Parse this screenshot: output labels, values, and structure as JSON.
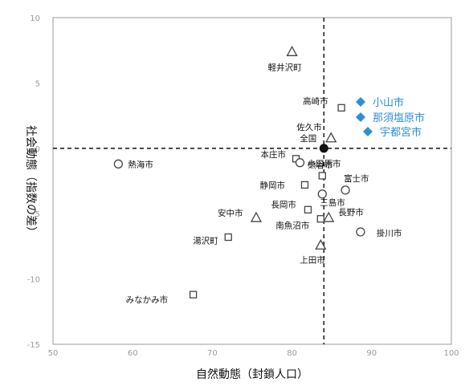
{
  "chart_data": {
    "type": "scatter",
    "xlabel": "自然動態（封鎖人口）",
    "ylabel": "社会動態（指数の差）",
    "xlim": [
      50,
      100
    ],
    "ylim": [
      -15,
      10
    ],
    "xticks": [
      "50",
      "60",
      "70",
      "80",
      "90",
      "100"
    ],
    "yticks": [
      "10",
      "5",
      "0",
      "-5",
      "-10",
      "-15"
    ],
    "reference_lines": {
      "x": 84,
      "y": 0,
      "style": "dashed"
    },
    "legend_position": "right",
    "highlight_color": "#2e8fd2",
    "points": [
      {
        "name": "軽井沢町",
        "x": 80.0,
        "y": 7.4,
        "marker": "triangle"
      },
      {
        "name": "高崎市",
        "x": 86.2,
        "y": 3.1,
        "marker": "square"
      },
      {
        "name": "佐久市",
        "x": 84.9,
        "y": 0.8,
        "marker": "triangle"
      },
      {
        "name": "全国",
        "x": 84.0,
        "y": 0.0,
        "marker": "dot"
      },
      {
        "name": "熱海市",
        "x": 58.2,
        "y": -1.2,
        "marker": "circle"
      },
      {
        "name": "本庄市",
        "x": 80.5,
        "y": -0.8,
        "marker": "square"
      },
      {
        "name": "小田原市",
        "x": 81.0,
        "y": -1.1,
        "marker": "circle"
      },
      {
        "name": "熊谷市",
        "x": 83.8,
        "y": -2.1,
        "marker": "square"
      },
      {
        "name": "静岡市",
        "x": 81.6,
        "y": -2.8,
        "marker": "square"
      },
      {
        "name": "富士市",
        "x": 86.7,
        "y": -3.2,
        "marker": "circle"
      },
      {
        "name": "三島市",
        "x": 83.8,
        "y": -3.5,
        "marker": "circle"
      },
      {
        "name": "長岡市",
        "x": 82.0,
        "y": -4.7,
        "marker": "square"
      },
      {
        "name": "長野市",
        "x": 84.6,
        "y": -5.3,
        "marker": "triangle"
      },
      {
        "name": "安中市",
        "x": 75.5,
        "y": -5.3,
        "marker": "triangle"
      },
      {
        "name": "南魚沼市",
        "x": 83.6,
        "y": -5.4,
        "marker": "square"
      },
      {
        "name": "掛川市",
        "x": 88.6,
        "y": -6.4,
        "marker": "circle"
      },
      {
        "name": "湯沢町",
        "x": 72.0,
        "y": -6.8,
        "marker": "square"
      },
      {
        "name": "上田市",
        "x": 83.6,
        "y": -7.4,
        "marker": "triangle"
      },
      {
        "name": "みなかみ市",
        "x": 67.6,
        "y": -11.2,
        "marker": "square"
      }
    ],
    "highlighted_series": [
      {
        "name": "小山市",
        "marker": "diamond"
      },
      {
        "name": "那須塩原市",
        "marker": "diamond"
      },
      {
        "name": "宇都宮市",
        "marker": "diamond"
      }
    ]
  }
}
